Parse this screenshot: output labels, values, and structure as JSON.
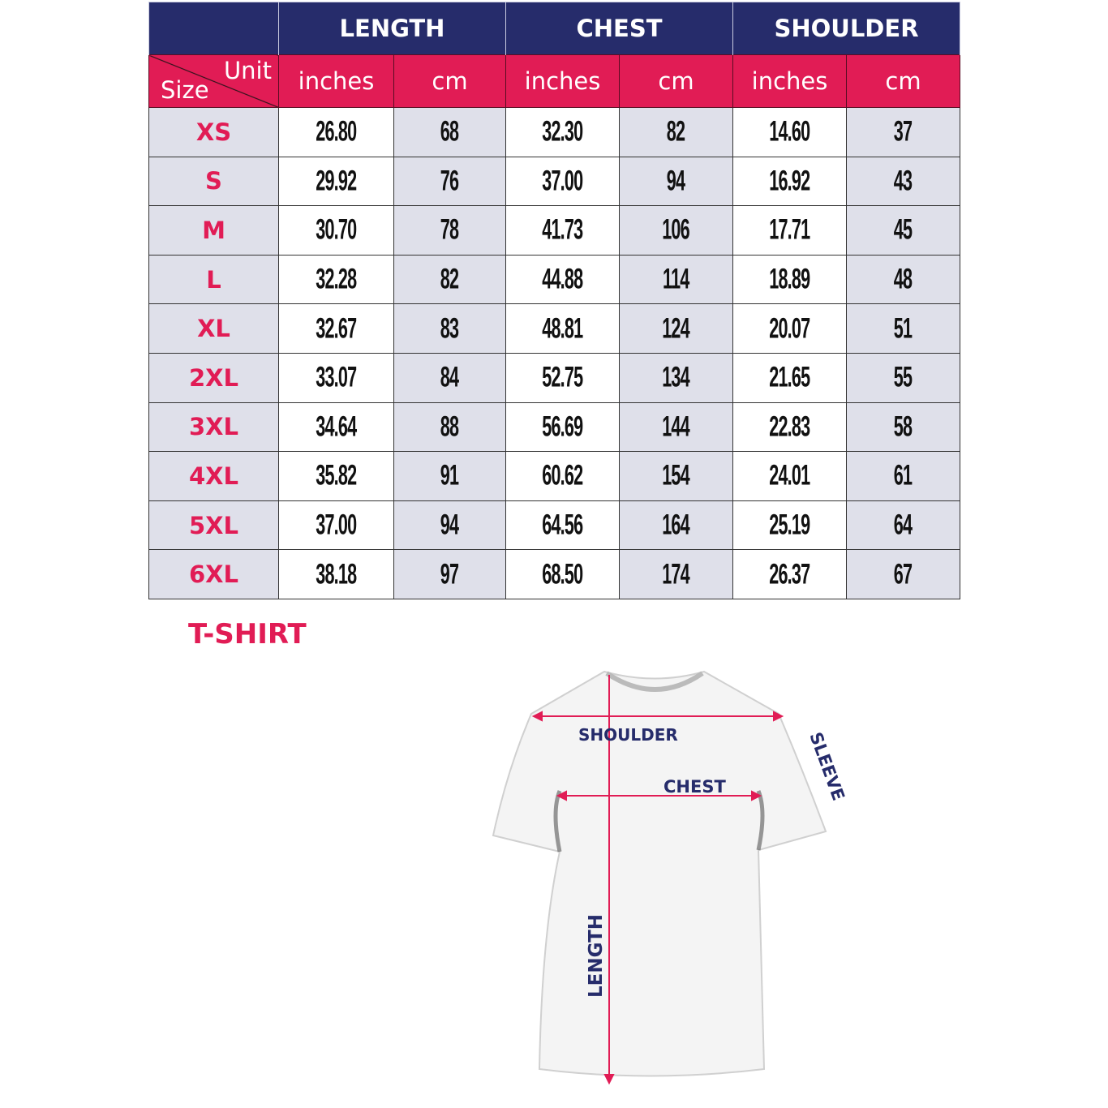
{
  "table": {
    "groups": [
      "LENGTH",
      "CHEST",
      "SHOULDER"
    ],
    "corner": {
      "unit": "Unit",
      "size": "Size"
    },
    "units": [
      "inches",
      "cm",
      "inches",
      "cm",
      "inches",
      "cm"
    ],
    "rows": [
      {
        "size": "XS",
        "values": [
          "26.80",
          "68",
          "32.30",
          "82",
          "14.60",
          "37"
        ]
      },
      {
        "size": "S",
        "values": [
          "29.92",
          "76",
          "37.00",
          "94",
          "16.92",
          "43"
        ]
      },
      {
        "size": "M",
        "values": [
          "30.70",
          "78",
          "41.73",
          "106",
          "17.71",
          "45"
        ]
      },
      {
        "size": "L",
        "values": [
          "32.28",
          "82",
          "44.88",
          "114",
          "18.89",
          "48"
        ]
      },
      {
        "size": "XL",
        "values": [
          "32.67",
          "83",
          "48.81",
          "124",
          "20.07",
          "51"
        ]
      },
      {
        "size": "2XL",
        "values": [
          "33.07",
          "84",
          "52.75",
          "134",
          "21.65",
          "55"
        ]
      },
      {
        "size": "3XL",
        "values": [
          "34.64",
          "88",
          "56.69",
          "144",
          "22.83",
          "58"
        ]
      },
      {
        "size": "4XL",
        "values": [
          "35.82",
          "91",
          "60.62",
          "154",
          "24.01",
          "61"
        ]
      },
      {
        "size": "5XL",
        "values": [
          "37.00",
          "94",
          "64.56",
          "164",
          "25.19",
          "64"
        ]
      },
      {
        "size": "6XL",
        "values": [
          "38.18",
          "97",
          "68.50",
          "174",
          "26.37",
          "67"
        ]
      }
    ]
  },
  "product_title": "T-SHIRT",
  "diagram": {
    "shoulder": "SHOULDER",
    "chest": "CHEST",
    "sleeve": "SLEEVE",
    "length": "LENGTH"
  },
  "colors": {
    "navy": "#262c6b",
    "pink": "#e11c55",
    "gray": "#dfe0ea"
  }
}
